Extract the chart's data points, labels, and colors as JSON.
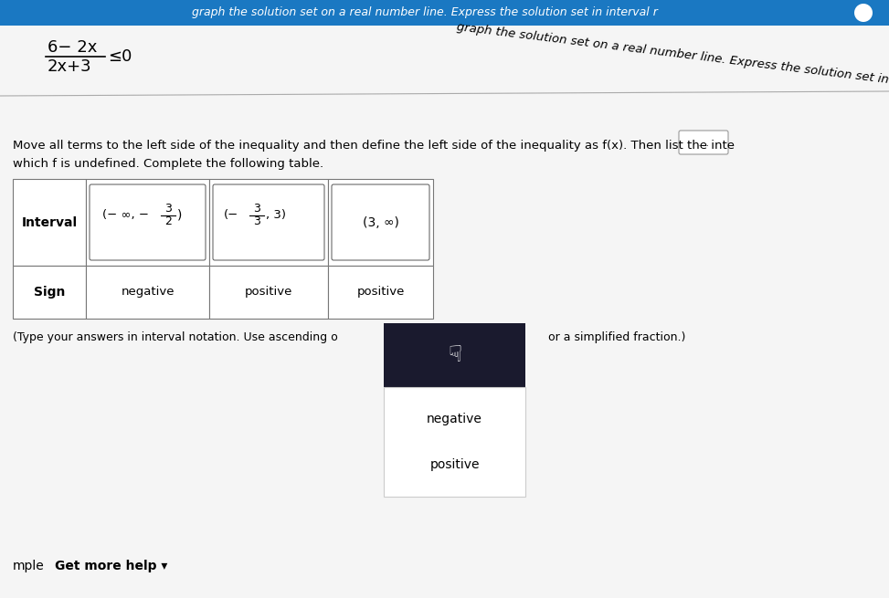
{
  "bg_color": "#d8d8d8",
  "white_panel_color": "#f0f0f0",
  "title_bar_color": "#1a78c2",
  "title_bar_text": "graph the solution set on a real number line. Express the solution set in interval r",
  "fraction_numerator": "6− 2x",
  "fraction_denominator": "2x+3",
  "inequality_rhs": "0",
  "instruction_line1": "Move all terms to the left side of the inequality and then define the left side of the inequality as f(x). Then list the inte",
  "instruction_line2": "which f is undefined. Complete the following table.",
  "table_signs": [
    "negative",
    "positive",
    "positive"
  ],
  "interval_col3": "(3, ∞)",
  "dropdown_bg": "#1a1a2e",
  "dropdown_option1": "negative",
  "dropdown_option2": "positive",
  "bottom_text1": "(Type your answers in interval notation. Use ascending o",
  "bottom_text2": "or a simplified fraction.)",
  "footer_left": "mple",
  "footer_text": "Get more help ▾",
  "dots_button_text": "…",
  "panel_bg": "#f5f5f5"
}
